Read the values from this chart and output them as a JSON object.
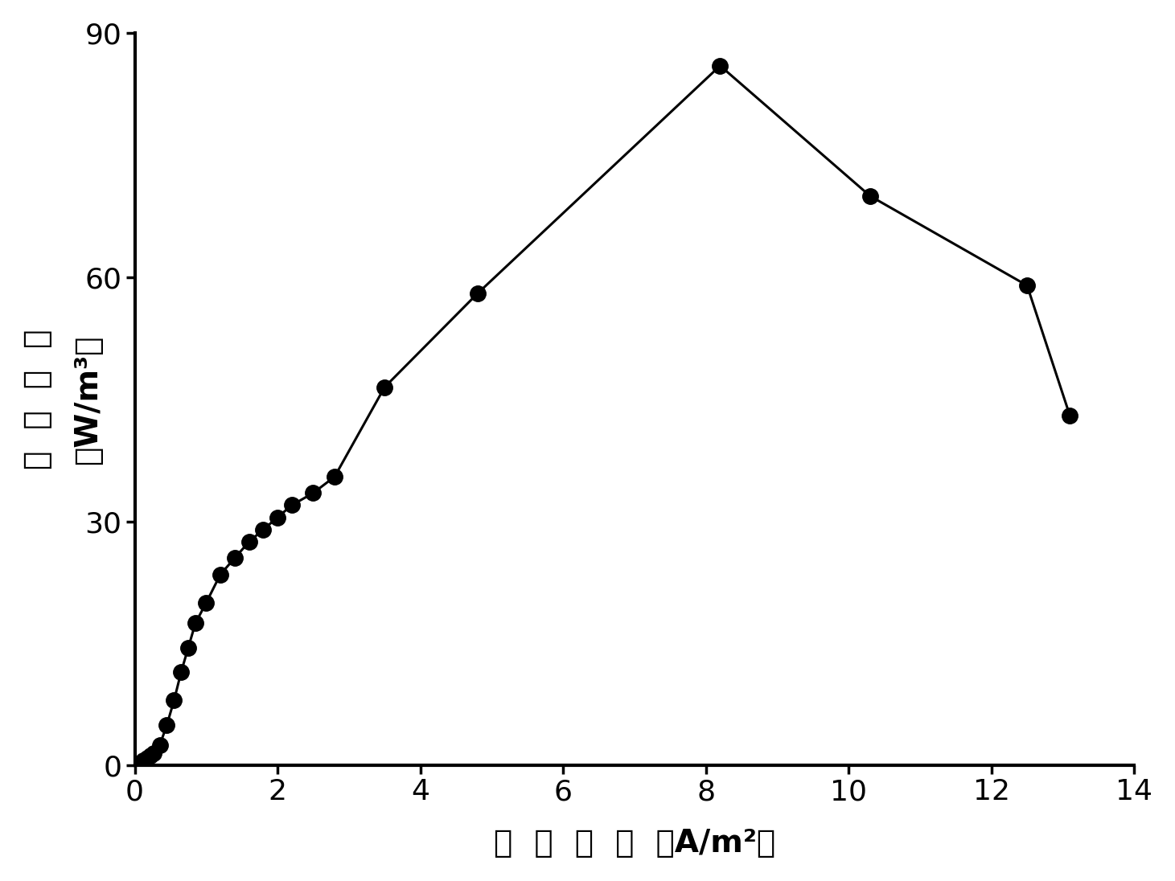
{
  "x": [
    0.05,
    0.08,
    0.12,
    0.17,
    0.22,
    0.27,
    0.35,
    0.45,
    0.55,
    0.65,
    0.75,
    0.85,
    1.0,
    1.2,
    1.4,
    1.6,
    1.8,
    2.0,
    2.2,
    2.5,
    2.8,
    3.5,
    4.8,
    8.2,
    10.3,
    12.5,
    13.1
  ],
  "y": [
    0.1,
    0.3,
    0.6,
    0.9,
    1.2,
    1.5,
    2.5,
    5.0,
    8.0,
    11.5,
    14.5,
    17.5,
    20.0,
    23.5,
    25.5,
    27.5,
    29.0,
    30.5,
    32.0,
    33.5,
    35.5,
    46.5,
    58.0,
    86.0,
    70.0,
    59.0,
    43.0
  ],
  "xlabel": "电  流  密  度  （A/m²）",
  "ylabel_line1": "功  率  密  度",
  "ylabel_line2": "（W/m³）",
  "xlim": [
    0,
    14
  ],
  "ylim": [
    0,
    90
  ],
  "xticks": [
    0,
    2,
    4,
    6,
    8,
    10,
    12,
    14
  ],
  "yticks": [
    0,
    30,
    60,
    90
  ],
  "line_color": "#000000",
  "marker_color": "#000000",
  "marker_size": 14,
  "line_width": 2.2,
  "background_color": "#ffffff",
  "tick_fontsize": 26,
  "label_fontsize": 28
}
